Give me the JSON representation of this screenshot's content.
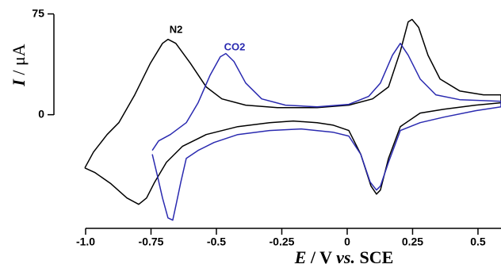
{
  "chart_data": {
    "type": "line",
    "x_label": [
      "E",
      " / V ",
      "vs.",
      " SCE"
    ],
    "y_label": [
      "I",
      " / μA"
    ],
    "xlim": [
      -1.0,
      0.588
    ],
    "ylim": [
      -84,
      83
    ],
    "xticks": [
      {
        "value": -1,
        "label": "-1.0"
      },
      -0.75,
      -0.5,
      -0.25,
      0,
      0.25,
      0.5
    ],
    "yticks": [
      0,
      75
    ],
    "series": [
      {
        "name": "N2",
        "color": "#000000",
        "x": [
          -1.003,
          -0.97,
          -0.918,
          -0.873,
          -0.812,
          -0.752,
          -0.706,
          -0.685,
          -0.655,
          -0.6,
          -0.539,
          -0.479,
          -0.388,
          -0.267,
          -0.115,
          0.006,
          0.097,
          0.158,
          0.203,
          0.233,
          0.248,
          0.273,
          0.309,
          0.355,
          0.43,
          0.521,
          0.588,
          0.588,
          0.491,
          0.37,
          0.279,
          0.203,
          0.158,
          0.127,
          0.112,
          0.091,
          0.052,
          0.006,
          -0.055,
          -0.115,
          -0.206,
          -0.297,
          -0.418,
          -0.539,
          -0.63,
          -0.691,
          -0.736,
          -0.767,
          -0.797,
          -0.842,
          -0.903,
          -0.964,
          -1.003
        ],
        "values": [
          -39.6,
          -27.8,
          -14.8,
          -5.9,
          14.8,
          38.4,
          53.1,
          56.1,
          53.1,
          38.4,
          20.7,
          11.8,
          7.1,
          5.3,
          5.3,
          7.1,
          11.8,
          20.7,
          47.2,
          69.1,
          70.9,
          65.0,
          44.3,
          26.6,
          17.7,
          14.8,
          14.8,
          8.9,
          7.1,
          4.1,
          1.2,
          -8.9,
          -32.5,
          -56.1,
          -59.1,
          -53.1,
          -29.5,
          -11.8,
          -7.7,
          -5.9,
          -4.7,
          -5.9,
          -8.9,
          -14.8,
          -23.6,
          -35.4,
          -50.2,
          -62.0,
          -66.7,
          -62.0,
          -51.4,
          -43.1,
          -39.6
        ]
      },
      {
        "name": "CO2",
        "color": "#2a2ab0",
        "x": [
          -0.745,
          -0.721,
          -0.676,
          -0.615,
          -0.57,
          -0.524,
          -0.485,
          -0.464,
          -0.433,
          -0.388,
          -0.327,
          -0.236,
          -0.115,
          0.006,
          0.082,
          0.127,
          0.173,
          0.203,
          0.233,
          0.279,
          0.339,
          0.43,
          0.588,
          0.588,
          0.491,
          0.37,
          0.279,
          0.203,
          0.158,
          0.127,
          0.112,
          0.088,
          0.052,
          0.006,
          -0.055,
          -0.176,
          -0.297,
          -0.418,
          -0.509,
          -0.57,
          -0.615,
          -0.636,
          -0.655,
          -0.667,
          -0.685,
          -0.706,
          -0.727,
          -0.745
        ],
        "values": [
          -26.6,
          -19.5,
          -14.8,
          -5.9,
          8.9,
          29.5,
          43.1,
          45.5,
          39.6,
          23.6,
          11.8,
          7.1,
          5.9,
          7.7,
          13.6,
          23.6,
          44.3,
          53.1,
          44.3,
          26.6,
          14.8,
          11.2,
          10.0,
          5.9,
          3.0,
          -1.8,
          -5.9,
          -11.8,
          -35.4,
          -53.1,
          -56.1,
          -50.2,
          -29.5,
          -15.9,
          -13.0,
          -10.6,
          -11.8,
          -14.8,
          -20.7,
          -26.6,
          -32.5,
          -50.2,
          -67.9,
          -78.5,
          -76.8,
          -62.0,
          -44.3,
          -29.5
        ]
      }
    ]
  }
}
